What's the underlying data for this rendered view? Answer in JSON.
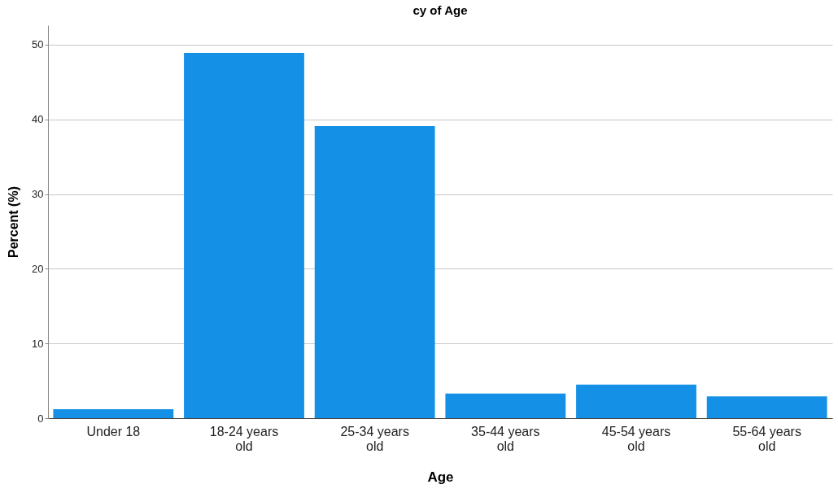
{
  "chart_data": {
    "type": "bar",
    "title": "cy of Age",
    "xlabel": "Age",
    "ylabel": "Percent (%)",
    "categories": [
      "Under 18",
      "18-24 years old",
      "25-34 years old",
      "35-44 years old",
      "45-54 years old",
      "55-64 years old"
    ],
    "values": [
      1.2,
      48.9,
      39.1,
      3.3,
      4.5,
      2.9
    ],
    "color": "#1490e6",
    "ylim": [
      0,
      52.6
    ],
    "yticks": [
      0,
      10,
      20,
      30,
      40,
      50
    ],
    "grid": "y"
  }
}
